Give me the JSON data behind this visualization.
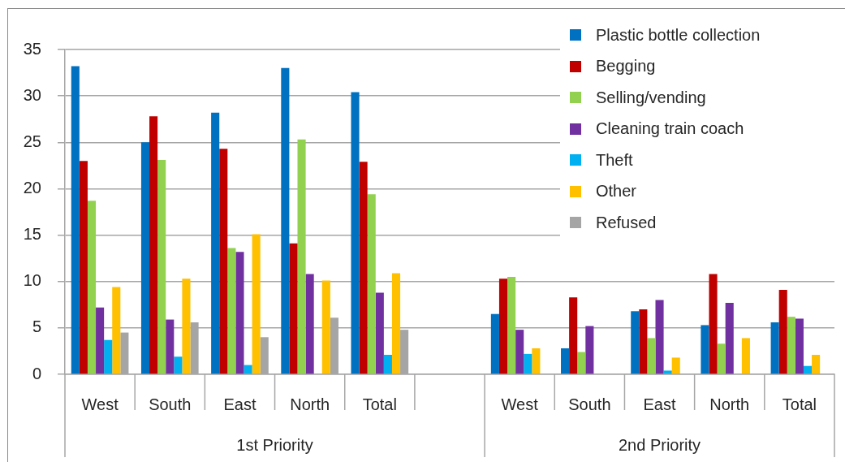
{
  "chart_data": {
    "type": "bar",
    "categories": [
      "West",
      "South",
      "East",
      "North",
      "Total",
      null,
      "West",
      "South",
      "East",
      "North",
      "Total"
    ],
    "series": [
      {
        "name": "Plastic bottle collection",
        "color": "#0070c0",
        "values": [
          33.2,
          25.0,
          28.2,
          33.0,
          30.4,
          null,
          6.5,
          2.8,
          6.8,
          5.3,
          5.6
        ]
      },
      {
        "name": "Begging",
        "color": "#c00000",
        "values": [
          23.0,
          27.8,
          24.3,
          14.1,
          22.9,
          null,
          10.3,
          8.3,
          7.0,
          10.8,
          9.1
        ]
      },
      {
        "name": "Selling/vending",
        "color": "#92d050",
        "values": [
          18.7,
          23.1,
          13.6,
          25.3,
          19.4,
          null,
          10.5,
          2.4,
          3.9,
          3.3,
          6.2
        ]
      },
      {
        "name": "Cleaning train coach",
        "color": "#7030a0",
        "values": [
          7.2,
          5.9,
          13.2,
          10.8,
          8.8,
          null,
          4.8,
          5.2,
          8.0,
          7.7,
          6.0
        ]
      },
      {
        "name": "Theft",
        "color": "#00b0f0",
        "values": [
          3.7,
          1.9,
          1.0,
          null,
          2.1,
          null,
          2.2,
          null,
          0.4,
          null,
          0.9
        ]
      },
      {
        "name": "Other",
        "color": "#ffc000",
        "values": [
          9.4,
          10.3,
          15.1,
          10.1,
          10.9,
          null,
          2.8,
          null,
          1.8,
          3.9,
          2.1
        ]
      },
      {
        "name": "Refused",
        "color": "#a5a5a5",
        "values": [
          4.5,
          5.6,
          4.0,
          6.1,
          4.8,
          null,
          null,
          null,
          null,
          null,
          null
        ]
      }
    ],
    "ylim": [
      0,
      35
    ],
    "yticks": [
      0,
      5,
      10,
      15,
      20,
      25,
      30,
      35
    ],
    "grid": "y",
    "legend": "top right",
    "annotations": [
      "1st Priority",
      "2nd Priority"
    ]
  }
}
